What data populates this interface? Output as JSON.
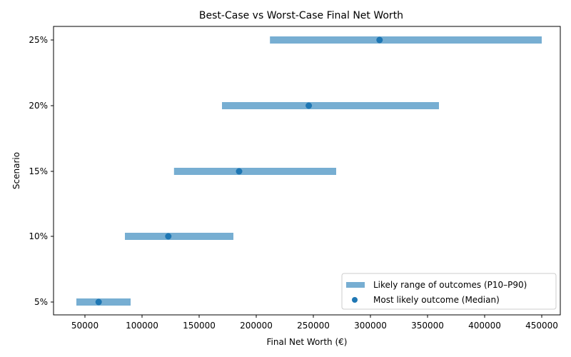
{
  "chart_data": {
    "type": "range-dot",
    "title": "Best-Case vs Worst-Case Final Net Worth",
    "xlabel": "Final Net Worth (€)",
    "ylabel": "Scenario",
    "categories": [
      "5%",
      "10%",
      "15%",
      "20%",
      "25%"
    ],
    "series": [
      {
        "name": "Likely range of outcomes (P10–P90)",
        "kind": "range",
        "low": [
          42500,
          85000,
          128000,
          170000,
          212000
        ],
        "high": [
          90000,
          180000,
          270000,
          360000,
          450000
        ]
      },
      {
        "name": "Most likely outcome (Median)",
        "kind": "scatter",
        "values": [
          62000,
          123000,
          185000,
          246000,
          308000
        ]
      }
    ],
    "xticks": [
      50000,
      100000,
      150000,
      200000,
      250000,
      300000,
      350000,
      400000,
      450000
    ],
    "xlim": [
      22000,
      473000
    ],
    "grid": false,
    "legend_position": "lower right",
    "colors": {
      "range": "#77aed2",
      "median": "#1f77b4"
    }
  }
}
